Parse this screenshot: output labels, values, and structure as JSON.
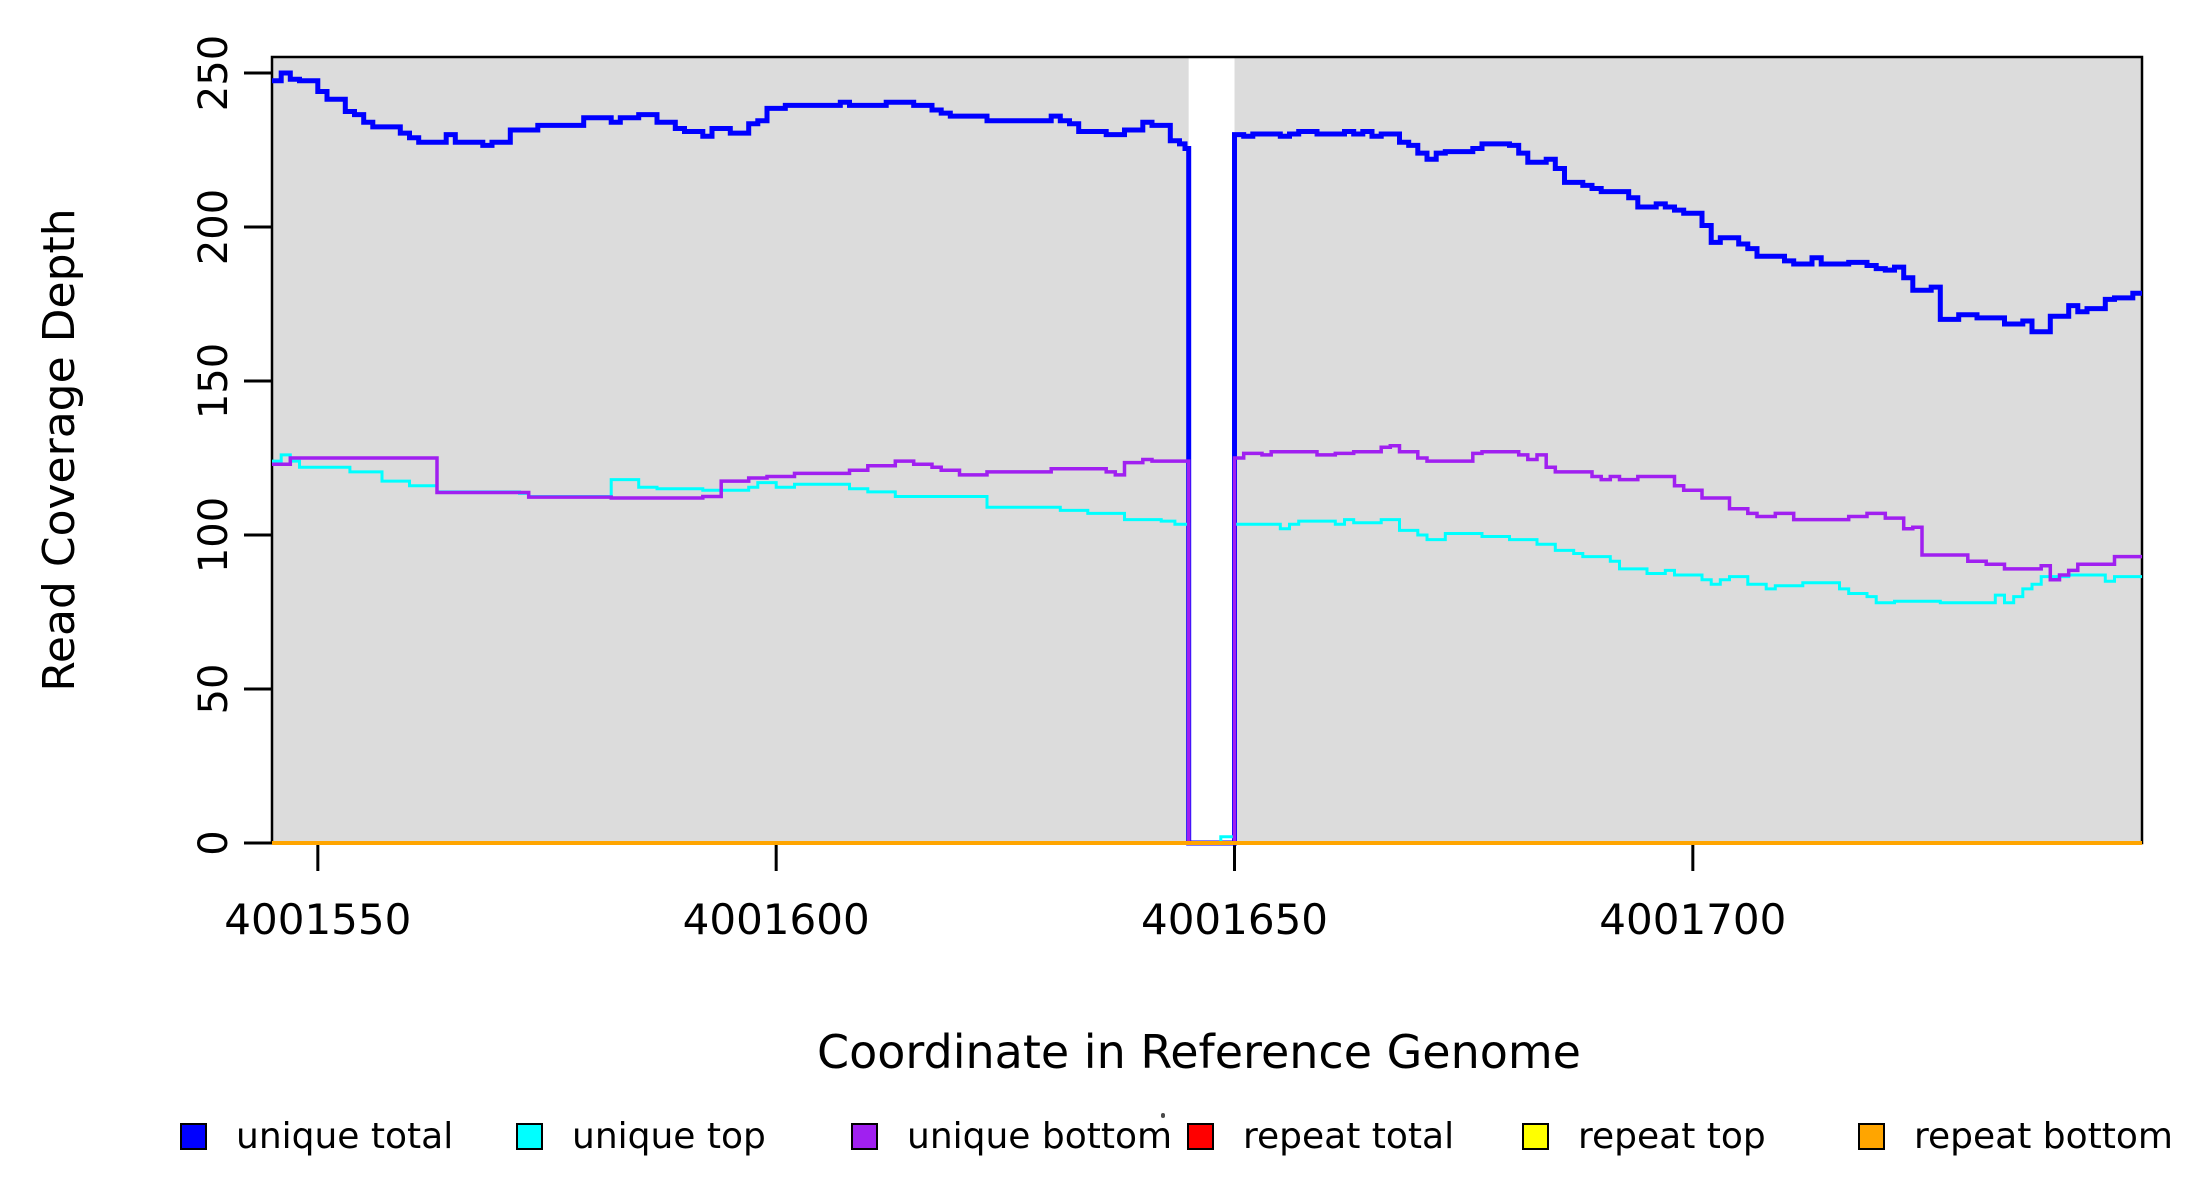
{
  "chart_data": {
    "type": "line",
    "subtype": "step",
    "title": "",
    "xlabel": "Coordinate in Reference Genome",
    "ylabel": "Read Coverage Depth",
    "xlim": [
      4001545,
      4001749
    ],
    "ylim": [
      0,
      255.2
    ],
    "x_ticks": [
      4001550,
      4001600,
      4001650,
      4001700
    ],
    "y_ticks": [
      0,
      50,
      100,
      150,
      200,
      250
    ],
    "grid": false,
    "plot_background_color": "#DCDCDC",
    "frame_color": "#000000",
    "coverage_gap": {
      "from": 4001645,
      "to": 4001650,
      "color": "#FFFFFF"
    },
    "legend_position": "bottom",
    "series": [
      {
        "name": "unique total",
        "color": "#0000FF",
        "line_width": 5,
        "points": [
          [
            4001545,
            247.5
          ],
          [
            4001546,
            250
          ],
          [
            4001547,
            248
          ],
          [
            4001548,
            247.5
          ],
          [
            4001550,
            244
          ],
          [
            4001551,
            241.5
          ],
          [
            4001553,
            237.5
          ],
          [
            4001554,
            236.5
          ],
          [
            4001555,
            234
          ],
          [
            4001556,
            232.5
          ],
          [
            4001559,
            230.5
          ],
          [
            4001560,
            229
          ],
          [
            4001561,
            227.5
          ],
          [
            4001564,
            230
          ],
          [
            4001565,
            227.5
          ],
          [
            4001568,
            226.5
          ],
          [
            4001569,
            227.5
          ],
          [
            4001571,
            231.5
          ],
          [
            4001574,
            233
          ],
          [
            4001579,
            235.5
          ],
          [
            4001582,
            234
          ],
          [
            4001583,
            235.5
          ],
          [
            4001585,
            236.5
          ],
          [
            4001587,
            234
          ],
          [
            4001589,
            232
          ],
          [
            4001590,
            231
          ],
          [
            4001592,
            229.5
          ],
          [
            4001593,
            232
          ],
          [
            4001595,
            230.5
          ],
          [
            4001597,
            233.5
          ],
          [
            4001598,
            234.5
          ],
          [
            4001599,
            238.5
          ],
          [
            4001601,
            239.5
          ],
          [
            4001607,
            240.5
          ],
          [
            4001608,
            239.5
          ],
          [
            4001612,
            240.5
          ],
          [
            4001615,
            239.5
          ],
          [
            4001617,
            238
          ],
          [
            4001618,
            237
          ],
          [
            4001619,
            236
          ],
          [
            4001623,
            234.5
          ],
          [
            4001630,
            236
          ],
          [
            4001631,
            234.5
          ],
          [
            4001632,
            233.5
          ],
          [
            4001633,
            231
          ],
          [
            4001636,
            230
          ],
          [
            4001638,
            231.5
          ],
          [
            4001640,
            234
          ],
          [
            4001641,
            233
          ],
          [
            4001643,
            228
          ],
          [
            4001644,
            227
          ],
          [
            4001644.6,
            225.5
          ],
          [
            4001645,
            0
          ],
          [
            4001650,
            230
          ],
          [
            4001651,
            229.5
          ],
          [
            4001652,
            230.2
          ],
          [
            4001655,
            229.5
          ],
          [
            4001656,
            230.2
          ],
          [
            4001657,
            231
          ],
          [
            4001659,
            230.2
          ],
          [
            4001662,
            231
          ],
          [
            4001663,
            230.2
          ],
          [
            4001664,
            231
          ],
          [
            4001665,
            229.5
          ],
          [
            4001666,
            230.2
          ],
          [
            4001668,
            227.5
          ],
          [
            4001669,
            226.5
          ],
          [
            4001670,
            224
          ],
          [
            4001671,
            222
          ],
          [
            4001672,
            224
          ],
          [
            4001673,
            224.5
          ],
          [
            4001676,
            225.5
          ],
          [
            4001677,
            227
          ],
          [
            4001680,
            226.5
          ],
          [
            4001681,
            224
          ],
          [
            4001682,
            221
          ],
          [
            4001684,
            222
          ],
          [
            4001685,
            219
          ],
          [
            4001686,
            214.5
          ],
          [
            4001688,
            213.5
          ],
          [
            4001689,
            212.5
          ],
          [
            4001690,
            211.5
          ],
          [
            4001693,
            209.5
          ],
          [
            4001694,
            206.5
          ],
          [
            4001696,
            207.5
          ],
          [
            4001697,
            206.5
          ],
          [
            4001698,
            205.5
          ],
          [
            4001699,
            204.5
          ],
          [
            4001701,
            200.5
          ],
          [
            4001702,
            195
          ],
          [
            4001703,
            196.5
          ],
          [
            4001705,
            194.5
          ],
          [
            4001706,
            193
          ],
          [
            4001707,
            190.5
          ],
          [
            4001710,
            189
          ],
          [
            4001711,
            188
          ],
          [
            4001713,
            190
          ],
          [
            4001714,
            188
          ],
          [
            4001717,
            188.5
          ],
          [
            4001719,
            187.5
          ],
          [
            4001720,
            186.5
          ],
          [
            4001721,
            186
          ],
          [
            4001722,
            187
          ],
          [
            4001723,
            183.5
          ],
          [
            4001724,
            179.5
          ],
          [
            4001726,
            180.5
          ],
          [
            4001727,
            170
          ],
          [
            4001729,
            171.5
          ],
          [
            4001731,
            170.5
          ],
          [
            4001734,
            168.5
          ],
          [
            4001736,
            169.5
          ],
          [
            4001737,
            166
          ],
          [
            4001739,
            171
          ],
          [
            4001741,
            174.5
          ],
          [
            4001742,
            172.5
          ],
          [
            4001743,
            173.5
          ],
          [
            4001745,
            176.5
          ],
          [
            4001746,
            177
          ],
          [
            4001748,
            178.5
          ],
          [
            4001749,
            179
          ]
        ]
      },
      {
        "name": "unique top",
        "color": "#00FFFF",
        "line_width": 3,
        "points": [
          [
            4001545,
            124
          ],
          [
            4001546,
            126
          ],
          [
            4001547,
            124
          ],
          [
            4001548,
            122
          ],
          [
            4001553.5,
            120.5
          ],
          [
            4001557,
            117.5
          ],
          [
            4001560,
            116
          ],
          [
            4001563,
            114
          ],
          [
            4001572,
            113.5
          ],
          [
            4001573,
            112.5
          ],
          [
            4001582,
            118
          ],
          [
            4001585,
            115.5
          ],
          [
            4001587,
            115
          ],
          [
            4001592,
            114.5
          ],
          [
            4001597,
            115.5
          ],
          [
            4001598,
            117
          ],
          [
            4001600,
            115.5
          ],
          [
            4001602,
            116.5
          ],
          [
            4001608,
            115
          ],
          [
            4001610,
            114
          ],
          [
            4001613,
            112.5
          ],
          [
            4001623,
            109
          ],
          [
            4001631,
            108
          ],
          [
            4001634,
            107
          ],
          [
            4001638,
            105
          ],
          [
            4001642,
            104.5
          ],
          [
            4001643.5,
            103.5
          ],
          [
            4001645,
            0
          ],
          [
            4001648.5,
            2
          ],
          [
            4001650,
            103.5
          ],
          [
            4001655,
            102
          ],
          [
            4001656,
            103.5
          ],
          [
            4001657,
            104.5
          ],
          [
            4001661,
            103.5
          ],
          [
            4001662,
            105
          ],
          [
            4001663,
            104
          ],
          [
            4001666,
            105
          ],
          [
            4001668,
            101.5
          ],
          [
            4001670,
            100
          ],
          [
            4001671,
            98.5
          ],
          [
            4001673,
            100.5
          ],
          [
            4001677,
            99.5
          ],
          [
            4001680,
            98.5
          ],
          [
            4001683,
            97
          ],
          [
            4001685,
            95
          ],
          [
            4001687,
            94
          ],
          [
            4001688,
            93
          ],
          [
            4001691,
            91.5
          ],
          [
            4001692,
            89
          ],
          [
            4001695,
            87.5
          ],
          [
            4001697,
            88.5
          ],
          [
            4001698,
            87
          ],
          [
            4001701,
            85.5
          ],
          [
            4001702,
            84
          ],
          [
            4001703,
            85.5
          ],
          [
            4001704,
            86.5
          ],
          [
            4001706,
            84
          ],
          [
            4001708,
            82.5
          ],
          [
            4001709,
            83.5
          ],
          [
            4001712,
            84.5
          ],
          [
            4001716,
            82.5
          ],
          [
            4001717,
            81
          ],
          [
            4001719,
            80
          ],
          [
            4001720,
            78
          ],
          [
            4001722,
            78.5
          ],
          [
            4001727,
            78
          ],
          [
            4001733,
            80.5
          ],
          [
            4001734,
            78
          ],
          [
            4001735,
            80
          ],
          [
            4001736,
            82.5
          ],
          [
            4001737,
            84
          ],
          [
            4001738,
            86.5
          ],
          [
            4001741,
            87
          ],
          [
            4001745,
            85
          ],
          [
            4001746,
            86.5
          ],
          [
            4001749,
            86.5
          ]
        ]
      },
      {
        "name": "unique bottom",
        "color": "#A020F0",
        "line_width": 3.5,
        "points": [
          [
            4001545,
            123
          ],
          [
            4001547,
            125
          ],
          [
            4001563,
            113.8
          ],
          [
            4001573,
            112.3
          ],
          [
            4001582,
            112
          ],
          [
            4001592,
            112.5
          ],
          [
            4001594,
            117.5
          ],
          [
            4001597,
            118.5
          ],
          [
            4001599,
            119
          ],
          [
            4001602,
            120
          ],
          [
            4001608,
            121
          ],
          [
            4001610,
            122.5
          ],
          [
            4001613,
            124
          ],
          [
            4001615,
            123
          ],
          [
            4001617,
            122
          ],
          [
            4001618,
            121
          ],
          [
            4001620,
            119.5
          ],
          [
            4001623,
            120.5
          ],
          [
            4001630,
            121.5
          ],
          [
            4001636,
            120.5
          ],
          [
            4001637,
            119.5
          ],
          [
            4001638,
            123.5
          ],
          [
            4001640,
            124.5
          ],
          [
            4001641,
            124
          ],
          [
            4001645,
            0
          ],
          [
            4001650,
            125
          ],
          [
            4001651,
            126.5
          ],
          [
            4001653,
            126
          ],
          [
            4001654,
            127
          ],
          [
            4001659,
            126
          ],
          [
            4001661,
            126.5
          ],
          [
            4001663,
            127
          ],
          [
            4001666,
            128.5
          ],
          [
            4001667,
            129
          ],
          [
            4001668,
            127
          ],
          [
            4001670,
            125
          ],
          [
            4001671,
            124
          ],
          [
            4001676,
            126.5
          ],
          [
            4001677,
            127
          ],
          [
            4001681,
            126
          ],
          [
            4001682,
            124.5
          ],
          [
            4001683,
            126
          ],
          [
            4001684,
            122
          ],
          [
            4001685,
            120.5
          ],
          [
            4001689,
            119
          ],
          [
            4001690,
            118
          ],
          [
            4001691,
            119
          ],
          [
            4001692,
            118
          ],
          [
            4001694,
            119
          ],
          [
            4001698,
            116
          ],
          [
            4001699,
            114.5
          ],
          [
            4001701,
            112
          ],
          [
            4001704,
            108.5
          ],
          [
            4001706,
            107
          ],
          [
            4001707,
            106
          ],
          [
            4001709,
            107
          ],
          [
            4001711,
            105
          ],
          [
            4001717,
            106
          ],
          [
            4001719,
            107
          ],
          [
            4001721,
            105.5
          ],
          [
            4001723,
            102
          ],
          [
            4001724,
            102.5
          ],
          [
            4001725,
            93.5
          ],
          [
            4001730,
            91.5
          ],
          [
            4001732,
            90.5
          ],
          [
            4001734,
            89
          ],
          [
            4001738,
            90
          ],
          [
            4001739,
            85.5
          ],
          [
            4001740,
            87
          ],
          [
            4001741,
            88.5
          ],
          [
            4001742,
            90.5
          ],
          [
            4001746,
            93
          ],
          [
            4001749,
            93
          ]
        ]
      },
      {
        "name": "repeat total",
        "color": "#FF0000",
        "line_width": 3,
        "points": [
          [
            4001545,
            0
          ],
          [
            4001749,
            0
          ]
        ]
      },
      {
        "name": "repeat top",
        "color": "#FFFF00",
        "line_width": 3,
        "points": [
          [
            4001545,
            0
          ],
          [
            4001749,
            0
          ]
        ]
      },
      {
        "name": "repeat bottom",
        "color": "#FFA500",
        "line_width": 4,
        "points": [
          [
            4001545,
            0
          ],
          [
            4001749,
            0
          ]
        ]
      }
    ]
  },
  "legend": {
    "items": [
      {
        "label": "unique total",
        "color": "#0000FF"
      },
      {
        "label": "unique top",
        "color": "#00FFFF"
      },
      {
        "label": "unique bottom",
        "color": "#A020F0"
      },
      {
        "label": "repeat total",
        "color": "#FF0000"
      },
      {
        "label": "repeat top",
        "color": "#FFFF00"
      },
      {
        "label": "repeat bottom",
        "color": "#FFA500"
      }
    ]
  },
  "axes_text": {
    "x_title": "Coordinate in Reference Genome",
    "y_title": "Read Coverage Depth",
    "x_tick_labels": [
      "4001550",
      "4001600",
      "4001650",
      "4001700"
    ],
    "y_tick_labels": [
      "0",
      "50",
      "100",
      "150",
      "200",
      "250"
    ]
  }
}
